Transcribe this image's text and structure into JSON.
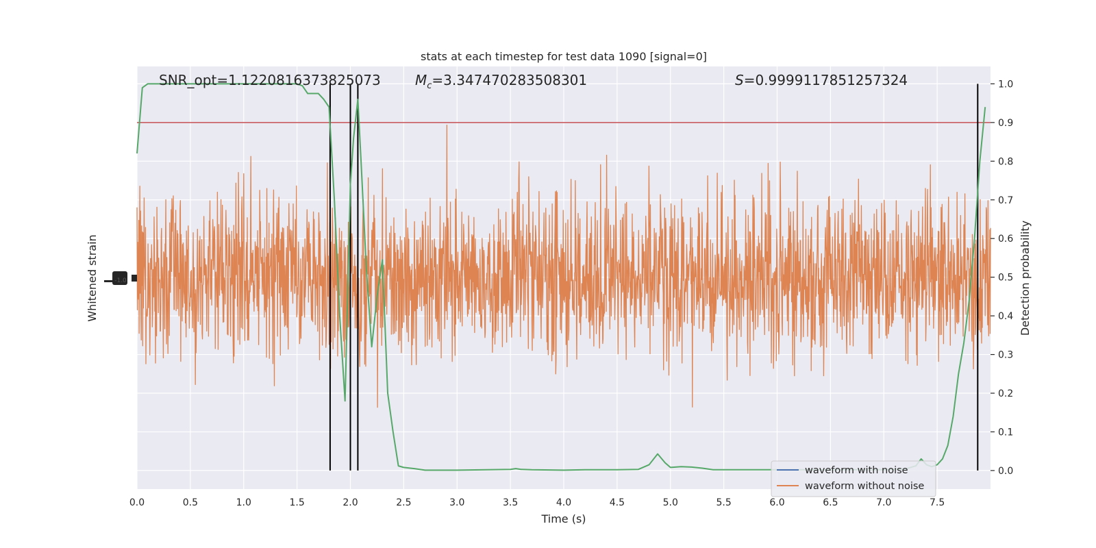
{
  "chart_data": {
    "type": "line",
    "title": "stats at each timestep for test data 1090 [signal=0]",
    "xlabel": "Time (s)",
    "ylabel_left": "Whitened strain",
    "ylabel_right": "Detection probability",
    "xlim": [
      0,
      8
    ],
    "ylim_right": [
      -0.048,
      1.045
    ],
    "x_ticks": [
      "0.0",
      "0.5",
      "1.0",
      "1.5",
      "2.0",
      "2.5",
      "3.0",
      "3.5",
      "4.0",
      "4.5",
      "5.0",
      "5.5",
      "6.0",
      "6.5",
      "7.0",
      "7.5"
    ],
    "y_ticks_right": [
      "0.0",
      "0.1",
      "0.2",
      "0.3",
      "0.4",
      "0.5",
      "0.6",
      "0.7",
      "0.8",
      "0.9",
      "1.0"
    ],
    "grid": true,
    "annotations": {
      "snr": "SNR_opt=1.1220816373825073",
      "mc_symbol": "M",
      "mc_sub": "c",
      "mc_value": "=3.347470283508301",
      "s_symbol": "S",
      "s_value": "=0.9999117851257324"
    },
    "threshold": 0.9,
    "vertical_lines": [
      1.81,
      2.0,
      2.07,
      7.88
    ],
    "legend": {
      "placement": "lower-right",
      "entries": [
        {
          "label": "waveform with noise",
          "color": "#4c72b0"
        },
        {
          "label": "waveform without noise",
          "color": "#dd8452"
        }
      ]
    },
    "series": [
      {
        "role": "detection probability",
        "color": "#55a868",
        "x": [
          0.0,
          0.05,
          0.1,
          0.2,
          0.3,
          0.4,
          0.5,
          0.6,
          0.7,
          0.8,
          0.9,
          1.0,
          1.1,
          1.2,
          1.3,
          1.4,
          1.5,
          1.55,
          1.6,
          1.65,
          1.7,
          1.75,
          1.8,
          1.85,
          1.9,
          1.95,
          2.0,
          2.03,
          2.07,
          2.1,
          2.15,
          2.2,
          2.25,
          2.3,
          2.35,
          2.4,
          2.45,
          2.5,
          2.6,
          2.7,
          3.0,
          3.5,
          3.55,
          3.6,
          3.7,
          4.0,
          4.2,
          4.5,
          4.7,
          4.8,
          4.88,
          4.95,
          5.0,
          5.1,
          5.2,
          5.3,
          5.4,
          5.8,
          6.0,
          6.5,
          7.0,
          7.2,
          7.3,
          7.35,
          7.4,
          7.45,
          7.5,
          7.55,
          7.6,
          7.65,
          7.7,
          7.75,
          7.8,
          7.85,
          7.9,
          7.95
        ],
        "values": [
          0.82,
          0.99,
          1.0,
          1.0,
          1.0,
          1.0,
          1.0,
          1.0,
          1.0,
          1.0,
          1.0,
          1.0,
          1.0,
          1.0,
          1.0,
          1.0,
          1.0,
          0.995,
          0.975,
          0.975,
          0.975,
          0.96,
          0.94,
          0.7,
          0.4,
          0.18,
          0.74,
          0.86,
          0.96,
          0.8,
          0.52,
          0.32,
          0.45,
          0.545,
          0.2,
          0.1,
          0.012,
          0.008,
          0.005,
          0.001,
          0.001,
          0.003,
          0.005,
          0.003,
          0.002,
          0.001,
          0.002,
          0.002,
          0.003,
          0.015,
          0.043,
          0.02,
          0.008,
          0.01,
          0.009,
          0.006,
          0.002,
          0.002,
          0.002,
          0.002,
          0.002,
          0.004,
          0.012,
          0.03,
          0.015,
          0.01,
          0.015,
          0.03,
          0.065,
          0.14,
          0.25,
          0.33,
          0.44,
          0.6,
          0.8,
          0.94
        ]
      }
    ],
    "noise": {
      "color": "#dd8452",
      "center": 0.5,
      "spread": 0.19,
      "samples": 2400,
      "seed": 1090
    },
    "left_axis_glyph": "-1.0"
  }
}
